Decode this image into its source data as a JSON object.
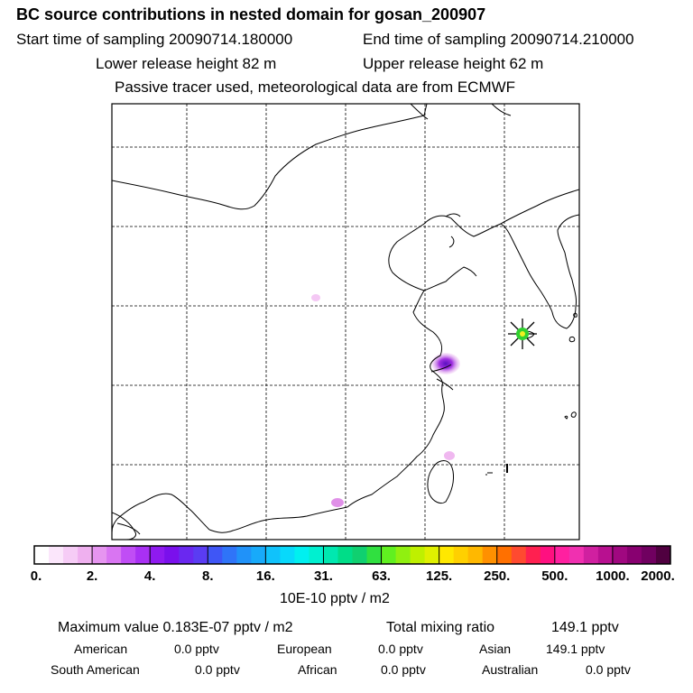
{
  "header": {
    "title": "BC  source contributions in nested domain for gosan_200907",
    "start_label": "Start time of sampling 20090714.180000",
    "end_label": "End time of sampling 20090714.210000",
    "lower_label": "Lower release height   82 m",
    "upper_label": "Upper release height   62 m",
    "note": "Passive tracer used, meteorological data are from ECMWF"
  },
  "colorbar": {
    "labels": [
      "0.",
      "2.",
      "4.",
      "8.",
      "16.",
      "31.",
      "63.",
      "125.",
      "250.",
      "500.",
      "1000.",
      "2000."
    ],
    "unit": "10E-10 pptv / m2",
    "colors": [
      "#ffffff",
      "#fbe6fb",
      "#f6ccf6",
      "#efb0ef",
      "#e695f0",
      "#d975f2",
      "#c04df5",
      "#a930f4",
      "#8f1af0",
      "#7a10ec",
      "#6a28f0",
      "#5a3cf3",
      "#3f56f6",
      "#2f74f8",
      "#2092f9",
      "#18aafa",
      "#10c2fb",
      "#08d9fb",
      "#00f0f0",
      "#00f0d0",
      "#00e8b0",
      "#00dd88",
      "#10d070",
      "#30e040",
      "#60f020",
      "#90f010",
      "#bff000",
      "#e0f000",
      "#ffe800",
      "#ffd000",
      "#ffb800",
      "#ff9000",
      "#ff7000",
      "#ff4a30",
      "#ff2050",
      "#ff1080",
      "#ff20a0",
      "#f030b0",
      "#d020a0",
      "#b81090",
      "#a00880",
      "#880070",
      "#700060",
      "#500040"
    ]
  },
  "stats": {
    "max_label": "Maximum value  0.183E-07 pptv / m2",
    "total_label": "Total mixing ratio",
    "total_value": "149.1 pptv"
  },
  "sources": {
    "american_label": "American",
    "american_value": "0.0 pptv",
    "european_label": "European",
    "european_value": "0.0 pptv",
    "asian_label": "Asian",
    "asian_value": "149.1 pptv",
    "south_american_label": "South American",
    "south_american_value": "0.0 pptv",
    "african_label": "African",
    "african_value": "0.0 pptv",
    "australian_label": "Australian",
    "australian_value": "0.0 pptv"
  },
  "map": {
    "receptor_marker": "star-marker",
    "plume_color": "#9020e0",
    "light_plume_color": "#f0c0f0"
  }
}
